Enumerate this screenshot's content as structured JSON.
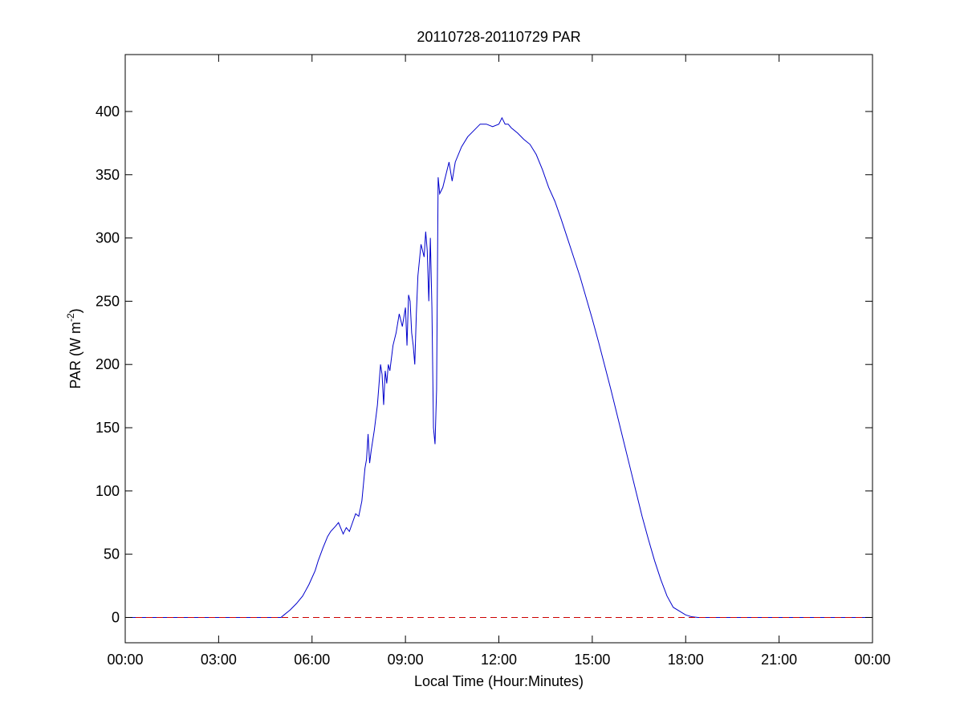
{
  "chart_data": {
    "type": "line",
    "title": "20110728-20110729 PAR",
    "xlabel": "Local Time (Hour:Minutes)",
    "ylabel": {
      "prefix": "PAR (W m",
      "superscript": "-2",
      "suffix": ")"
    },
    "xlim": [
      0,
      24
    ],
    "ylim": [
      -20,
      445
    ],
    "x_ticks": [
      {
        "value": 0,
        "label": "00:00"
      },
      {
        "value": 3,
        "label": "03:00"
      },
      {
        "value": 6,
        "label": "06:00"
      },
      {
        "value": 9,
        "label": "09:00"
      },
      {
        "value": 12,
        "label": "12:00"
      },
      {
        "value": 15,
        "label": "15:00"
      },
      {
        "value": 18,
        "label": "18:00"
      },
      {
        "value": 21,
        "label": "21:00"
      },
      {
        "value": 24,
        "label": "00:00"
      }
    ],
    "y_ticks": [
      {
        "value": 0,
        "label": "0"
      },
      {
        "value": 50,
        "label": "50"
      },
      {
        "value": 100,
        "label": "100"
      },
      {
        "value": 150,
        "label": "150"
      },
      {
        "value": 200,
        "label": "200"
      },
      {
        "value": 250,
        "label": "250"
      },
      {
        "value": 300,
        "label": "300"
      },
      {
        "value": 350,
        "label": "350"
      },
      {
        "value": 400,
        "label": "400"
      }
    ],
    "grid": false,
    "legend": "none",
    "series": [
      {
        "style": "solid",
        "color": "#0000cc",
        "x": [
          0,
          5.0,
          5.1,
          5.3,
          5.5,
          5.7,
          5.9,
          6.1,
          6.2,
          6.35,
          6.5,
          6.6,
          6.75,
          6.85,
          6.95,
          7.0,
          7.1,
          7.2,
          7.3,
          7.4,
          7.5,
          7.6,
          7.7,
          7.75,
          7.8,
          7.85,
          7.9,
          7.95,
          8.0,
          8.1,
          8.2,
          8.25,
          8.3,
          8.35,
          8.4,
          8.45,
          8.5,
          8.6,
          8.7,
          8.8,
          8.9,
          9.0,
          9.05,
          9.1,
          9.15,
          9.2,
          9.25,
          9.3,
          9.35,
          9.4,
          9.5,
          9.6,
          9.65,
          9.7,
          9.75,
          9.8,
          9.85,
          9.9,
          9.95,
          10.0,
          10.05,
          10.1,
          10.2,
          10.3,
          10.4,
          10.5,
          10.6,
          10.8,
          11.0,
          11.2,
          11.4,
          11.6,
          11.8,
          12.0,
          12.1,
          12.2,
          12.3,
          12.4,
          12.6,
          12.8,
          13.0,
          13.2,
          13.4,
          13.6,
          13.8,
          14.0,
          14.2,
          14.4,
          14.6,
          14.8,
          15.0,
          15.2,
          15.4,
          15.6,
          15.8,
          16.0,
          16.2,
          16.4,
          16.6,
          16.8,
          17.0,
          17.2,
          17.4,
          17.6,
          17.8,
          18.0,
          18.2,
          18.4,
          18.6,
          18.8,
          19.0,
          19.2,
          24
        ],
        "y": [
          0,
          0,
          2,
          6,
          11,
          17,
          26,
          37,
          45,
          55,
          64,
          68,
          72,
          75,
          69,
          66,
          71,
          68,
          75,
          82,
          80,
          92,
          118,
          125,
          145,
          122,
          132,
          140,
          148,
          168,
          200,
          192,
          168,
          195,
          185,
          200,
          195,
          215,
          225,
          240,
          230,
          245,
          215,
          255,
          250,
          225,
          215,
          200,
          240,
          270,
          295,
          285,
          305,
          290,
          250,
          300,
          245,
          150,
          137,
          180,
          348,
          335,
          340,
          350,
          360,
          345,
          360,
          372,
          380,
          385,
          390,
          390,
          388,
          390,
          395,
          390,
          390,
          387,
          383,
          378,
          374,
          366,
          354,
          340,
          329,
          315,
          300,
          285,
          270,
          253,
          236,
          218,
          199,
          180,
          160,
          140,
          120,
          100,
          80,
          62,
          45,
          30,
          17,
          8,
          5,
          2,
          0.5,
          0,
          0,
          0,
          0,
          0,
          0
        ]
      },
      {
        "style": "dashed",
        "color": "#cc0000",
        "x": [
          0,
          24
        ],
        "y": [
          0,
          0
        ]
      }
    ]
  }
}
